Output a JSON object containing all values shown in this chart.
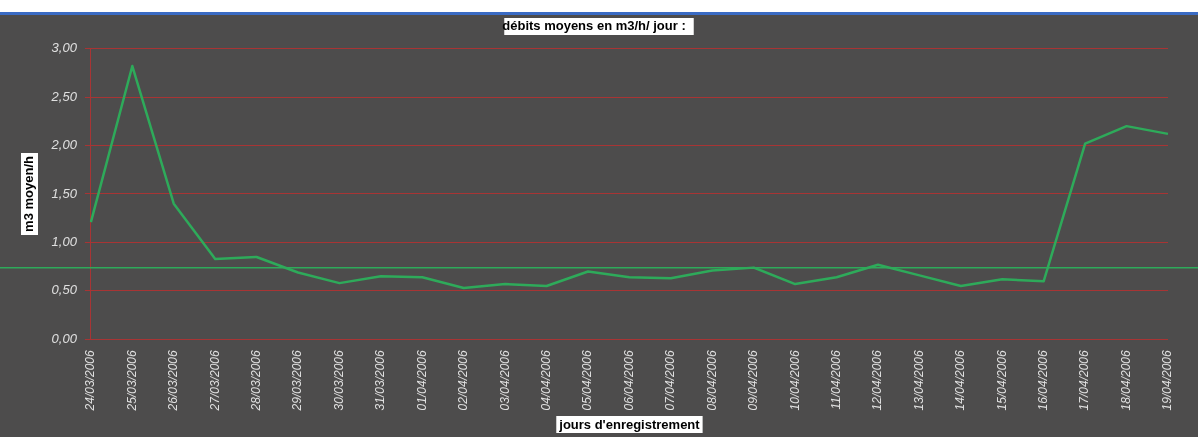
{
  "chart_data": {
    "type": "line",
    "title": "débits moyens en m3/h/ jour :",
    "xlabel": "jours d'enregistrement",
    "ylabel": "m3 moyen/h",
    "categories": [
      "24/03/2006",
      "25/03/2006",
      "26/03/2006",
      "27/03/2006",
      "28/03/2006",
      "29/03/2006",
      "30/03/2006",
      "31/03/2006",
      "01/04/2006",
      "02/04/2006",
      "03/04/2006",
      "04/04/2006",
      "05/04/2006",
      "06/04/2006",
      "07/04/2006",
      "08/04/2006",
      "09/04/2006",
      "10/04/2006",
      "11/04/2006",
      "12/04/2006",
      "13/04/2006",
      "14/04/2006",
      "15/04/2006",
      "16/04/2006",
      "17/04/2006",
      "18/04/2006",
      "19/04/2006"
    ],
    "series": [
      {
        "color": "#2eaa5a",
        "values": [
          1.21,
          2.82,
          1.4,
          0.83,
          0.85,
          0.69,
          0.58,
          0.65,
          0.64,
          0.53,
          0.57,
          0.55,
          0.7,
          0.64,
          0.63,
          0.71,
          0.74,
          0.57,
          0.64,
          0.77,
          0.66,
          0.55,
          0.62,
          0.6,
          2.02,
          2.2,
          2.12
        ]
      }
    ],
    "ylim": [
      0,
      3
    ],
    "yticks": [
      {
        "value": 0,
        "label": "0,00"
      },
      {
        "value": 0.5,
        "label": "0,50"
      },
      {
        "value": 1,
        "label": "1,00"
      },
      {
        "value": 1.5,
        "label": "1,50"
      },
      {
        "value": 2,
        "label": "2,00"
      },
      {
        "value": 2.5,
        "label": "2,50"
      },
      {
        "value": 3,
        "label": "3,00"
      }
    ],
    "grid": "y",
    "legend": false,
    "marker": "none",
    "line_style": "solid",
    "ref_lines": [
      {
        "axis": "y",
        "value": 0.74,
        "color": "#2eaa5a"
      }
    ]
  }
}
